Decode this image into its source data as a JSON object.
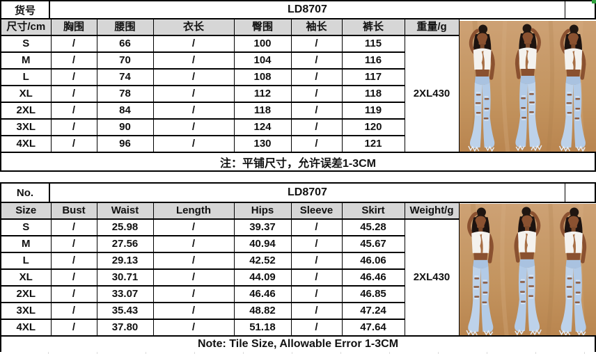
{
  "item_code": "LD8707",
  "tables": [
    {
      "name": "size-chart-cm",
      "title_label": "货号",
      "title_value": "LD8707",
      "columns": [
        "尺寸/cm",
        "胸围",
        "腰围",
        "衣长",
        "臀围",
        "袖长",
        "裤长",
        "重量/g"
      ],
      "rows": [
        [
          "S",
          "/",
          "66",
          "/",
          "100",
          "/",
          "115"
        ],
        [
          "M",
          "/",
          "70",
          "/",
          "104",
          "/",
          "116"
        ],
        [
          "L",
          "/",
          "74",
          "/",
          "108",
          "/",
          "117"
        ],
        [
          "XL",
          "/",
          "78",
          "/",
          "112",
          "/",
          "118"
        ],
        [
          "2XL",
          "/",
          "84",
          "/",
          "118",
          "/",
          "119"
        ],
        [
          "3XL",
          "/",
          "90",
          "/",
          "124",
          "/",
          "120"
        ],
        [
          "4XL",
          "/",
          "96",
          "/",
          "130",
          "/",
          "121"
        ]
      ],
      "weight_value": "2XL430",
      "note": "注：平铺尺寸，允许误差1-3CM"
    },
    {
      "name": "size-chart-inch",
      "title_label": "No.",
      "title_value": "LD8707",
      "columns": [
        "Size",
        "Bust",
        "Waist",
        "Length",
        "Hips",
        "Sleeve",
        "Skirt",
        "Weight/g"
      ],
      "rows": [
        [
          "S",
          "/",
          "25.98",
          "/",
          "39.37",
          "/",
          "45.28"
        ],
        [
          "M",
          "/",
          "27.56",
          "/",
          "40.94",
          "/",
          "45.67"
        ],
        [
          "L",
          "/",
          "29.13",
          "/",
          "42.52",
          "/",
          "46.06"
        ],
        [
          "XL",
          "/",
          "30.71",
          "/",
          "44.09",
          "/",
          "46.46"
        ],
        [
          "2XL",
          "/",
          "33.07",
          "/",
          "46.46",
          "/",
          "46.85"
        ],
        [
          "3XL",
          "/",
          "35.43",
          "/",
          "48.82",
          "/",
          "47.24"
        ],
        [
          "4XL",
          "/",
          "37.80",
          "/",
          "51.18",
          "/",
          "47.64"
        ]
      ],
      "weight_value": "2XL430",
      "note": "Note: Tile Size, Allowable Error 1-3CM"
    }
  ],
  "photo": {
    "description": "Three poses of a model in a white cutout crop top and light-blue ripped flare jeans on a tan backdrop"
  },
  "colors": {
    "header_bg": "#d6d6d6",
    "border": "#000000",
    "selection_handle": "#2fa33c",
    "photo_backdrop": "#c79a6b",
    "jeans": "#b9cfe8"
  }
}
